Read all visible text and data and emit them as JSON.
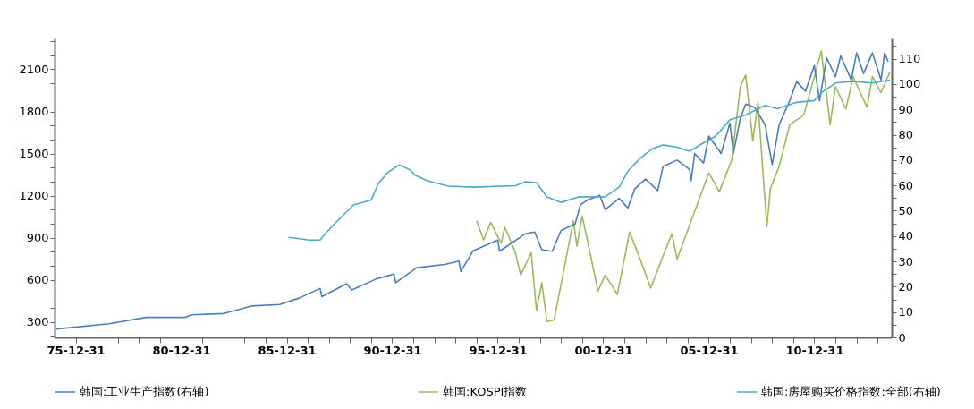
{
  "chart_data": {
    "type": "line",
    "legend": "bottom",
    "grid": false,
    "marker": "none",
    "line_style": "solid",
    "xlim": [
      "1975-01",
      "2014-09"
    ],
    "xticks": [
      {
        "value": "1975-12-31",
        "label": "75-12-31"
      },
      {
        "value": "1976-12-31",
        "label": null
      },
      {
        "value": "1977-12-31",
        "label": null
      },
      {
        "value": "1978-12-31",
        "label": null
      },
      {
        "value": "1979-12-31",
        "label": null
      },
      {
        "value": "1980-12-31",
        "label": "80-12-31"
      },
      {
        "value": "1981-12-31",
        "label": null
      },
      {
        "value": "1982-12-31",
        "label": null
      },
      {
        "value": "1983-12-31",
        "label": null
      },
      {
        "value": "1984-12-31",
        "label": null
      },
      {
        "value": "1985-12-31",
        "label": "85-12-31"
      },
      {
        "value": "1986-12-31",
        "label": null
      },
      {
        "value": "1987-12-31",
        "label": null
      },
      {
        "value": "1988-12-31",
        "label": null
      },
      {
        "value": "1989-12-31",
        "label": null
      },
      {
        "value": "1990-12-31",
        "label": "90-12-31"
      },
      {
        "value": "1991-12-31",
        "label": null
      },
      {
        "value": "1992-12-31",
        "label": null
      },
      {
        "value": "1993-12-31",
        "label": null
      },
      {
        "value": "1994-12-31",
        "label": null
      },
      {
        "value": "1995-12-31",
        "label": "95-12-31"
      },
      {
        "value": "1996-12-31",
        "label": null
      },
      {
        "value": "1997-12-31",
        "label": null
      },
      {
        "value": "1998-12-31",
        "label": null
      },
      {
        "value": "1999-12-31",
        "label": null
      },
      {
        "value": "2000-12-31",
        "label": "00-12-31"
      },
      {
        "value": "2001-12-31",
        "label": null
      },
      {
        "value": "2002-12-31",
        "label": null
      },
      {
        "value": "2003-12-31",
        "label": null
      },
      {
        "value": "2004-12-31",
        "label": null
      },
      {
        "value": "2005-12-31",
        "label": "05-12-31"
      },
      {
        "value": "2006-12-31",
        "label": null
      },
      {
        "value": "2007-12-31",
        "label": null
      },
      {
        "value": "2008-12-31",
        "label": null
      },
      {
        "value": "2009-12-31",
        "label": null
      },
      {
        "value": "2010-12-31",
        "label": "10-12-31"
      },
      {
        "value": "2011-12-31",
        "label": null
      },
      {
        "value": "2012-12-31",
        "label": null
      },
      {
        "value": "2013-12-31",
        "label": null
      }
    ],
    "ylim": [
      190,
      2320
    ],
    "yticks": [
      {
        "value": 200,
        "label": null
      },
      300,
      {
        "value": 400,
        "label": null
      },
      {
        "value": 500,
        "label": null
      },
      600,
      {
        "value": 700,
        "label": null
      },
      {
        "value": 800,
        "label": null
      },
      900,
      {
        "value": 1000,
        "label": null
      },
      {
        "value": 1100,
        "label": null
      },
      1200,
      {
        "value": 1300,
        "label": null
      },
      {
        "value": 1400,
        "label": null
      },
      1500,
      {
        "value": 1600,
        "label": null
      },
      {
        "value": 1700,
        "label": null
      },
      1800,
      {
        "value": 1900,
        "label": null
      },
      {
        "value": 2000,
        "label": null
      },
      2100,
      {
        "value": 2200,
        "label": null
      },
      {
        "value": 2300,
        "label": null
      }
    ],
    "y2lim": [
      0,
      118
    ],
    "y2ticks": [
      0,
      {
        "value": 5,
        "label": null
      },
      10,
      {
        "value": 15,
        "label": null
      },
      20,
      {
        "value": 25,
        "label": null
      },
      30,
      {
        "value": 35,
        "label": null
      },
      40,
      {
        "value": 45,
        "label": null
      },
      50,
      {
        "value": 55,
        "label": null
      },
      60,
      {
        "value": 65,
        "label": null
      },
      70,
      {
        "value": 75,
        "label": null
      },
      80,
      {
        "value": 85,
        "label": null
      },
      90,
      {
        "value": 95,
        "label": null
      },
      100,
      {
        "value": 105,
        "label": null
      },
      110,
      {
        "value": 115,
        "label": null
      }
    ],
    "series": [
      {
        "name": "韩国:工业生产指数(右轴)",
        "color": "#4a7ebb",
        "axis": "y2",
        "x": [
          "1975-02",
          "1977-08",
          "1979-05",
          "1981-03",
          "1981-07",
          "1983-01",
          "1984-05",
          "1985-09",
          "1986-08",
          "1987-08",
          "1987-09",
          "1988-11",
          "1989-02",
          "1990-04",
          "1991-02",
          "1991-03",
          "1992-03",
          "1993-07",
          "1994-03",
          "1994-04",
          "1994-11",
          "1996-01",
          "1996-02",
          "1997-05",
          "1997-10",
          "1998-02",
          "1998-08",
          "1999-01",
          "1999-09",
          "1999-12",
          "2000-04",
          "2000-11",
          "2001-02",
          "2001-10",
          "2002-03",
          "2002-07",
          "2003-01",
          "2003-08",
          "2003-11",
          "2004-07",
          "2005-02",
          "2005-03",
          "2005-05",
          "2005-10",
          "2006-01",
          "2006-08",
          "2007-01",
          "2007-03",
          "2007-07",
          "2007-10",
          "2008-03",
          "2008-09",
          "2009-01",
          "2009-05",
          "2009-11",
          "2010-03",
          "2010-08",
          "2011-01",
          "2011-04",
          "2011-08",
          "2012-01",
          "2012-04",
          "2012-10",
          "2013-01",
          "2013-05",
          "2013-10",
          "2014-03",
          "2014-05",
          "2014-07"
        ],
        "values": [
          3.3,
          5.4,
          7.9,
          7.9,
          8.9,
          9.4,
          12.4,
          13.0,
          15.5,
          19.3,
          16.1,
          21.2,
          18.7,
          23.1,
          25.0,
          21.6,
          27.5,
          28.8,
          30.1,
          26.0,
          34.2,
          38.4,
          34.0,
          41.0,
          41.6,
          34.6,
          34.0,
          42.2,
          44.8,
          52.3,
          54.2,
          56.1,
          50.4,
          54.9,
          51.1,
          58.7,
          62.5,
          58.0,
          67.5,
          70.0,
          66.3,
          61.8,
          72.6,
          68.8,
          79.5,
          72.6,
          84.6,
          72.6,
          86.5,
          92.1,
          90.9,
          83.9,
          68.2,
          83.9,
          93.4,
          101.0,
          97.2,
          107.3,
          93.4,
          110.4,
          102.9,
          111.1,
          101.6,
          112.3,
          104.2,
          112.3,
          101.6,
          112.3,
          108.8
        ]
      },
      {
        "name": "韩国:KOSPI指数",
        "color": "#9bbb59",
        "x": [
          "1995-01",
          "1995-05",
          "1995-09",
          "1996-03",
          "1996-05",
          "1996-11",
          "1997-02",
          "1997-08",
          "1997-11",
          "1998-02",
          "1998-05",
          "1998-09",
          "1999-02",
          "1999-08",
          "1999-10",
          "2000-01",
          "2000-07",
          "2000-10",
          "2001-02",
          "2001-09",
          "2002-04",
          "2002-10",
          "2003-04",
          "2003-11",
          "2004-04",
          "2004-07",
          "2005-03",
          "2006-01",
          "2006-07",
          "2007-02",
          "2007-07",
          "2007-10",
          "2008-02",
          "2008-05",
          "2008-10",
          "2008-12",
          "2009-05",
          "2009-11",
          "2010-07",
          "2011-01",
          "2011-05",
          "2011-10",
          "2012-01",
          "2012-07",
          "2012-11",
          "2013-07",
          "2013-10",
          "2014-03",
          "2014-08"
        ],
        "values": [
          1021,
          884,
          1010,
          861,
          976,
          794,
          634,
          794,
          383,
          578,
          303,
          314,
          634,
          1021,
          841,
          1056,
          702,
          520,
          634,
          497,
          940,
          747,
          542,
          770,
          929,
          747,
          1021,
          1362,
          1227,
          1454,
          1977,
          2059,
          1591,
          1866,
          976,
          1249,
          1409,
          1705,
          1774,
          2048,
          2230,
          1705,
          1977,
          1817,
          2048,
          1830,
          2048,
          1934,
          2082
        ]
      },
      {
        "name": "韩国:房屋购买价格指数:全部(右轴)",
        "color": "#4bacc6",
        "axis": "y2",
        "x": [
          "1986-02",
          "1987-02",
          "1987-08",
          "1987-11",
          "1988-05",
          "1989-03",
          "1990-01",
          "1990-05",
          "1990-10",
          "1991-05",
          "1991-11",
          "1992-02",
          "1992-09",
          "1993-09",
          "1994-11",
          "1996-11",
          "1997-05",
          "1997-11",
          "1998-05",
          "1999-01",
          "1999-11",
          "2001-02",
          "2001-10",
          "2002-03",
          "2002-10",
          "2003-05",
          "2003-11",
          "2004-07",
          "2005-02",
          "2005-09",
          "2006-05",
          "2007-01",
          "2007-10",
          "2008-09",
          "2009-04",
          "2010-03",
          "2011-01",
          "2011-05",
          "2012-01",
          "2012-11",
          "2013-10",
          "2014-08"
        ],
        "values": [
          39.5,
          38.4,
          38.4,
          41.0,
          45.4,
          52.3,
          54.2,
          60.5,
          64.9,
          68.1,
          66.2,
          64.0,
          61.8,
          59.7,
          59.3,
          59.9,
          61.5,
          61.1,
          55.5,
          53.3,
          55.5,
          55.5,
          59.3,
          65.6,
          70.7,
          74.5,
          76.0,
          75.1,
          73.5,
          76.4,
          79.5,
          85.9,
          87.8,
          91.6,
          90.3,
          92.8,
          93.5,
          96.6,
          100.4,
          101.1,
          100.4,
          101.6
        ]
      }
    ]
  }
}
